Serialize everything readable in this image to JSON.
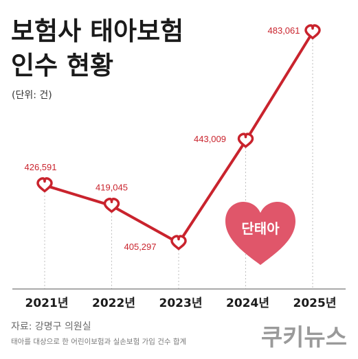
{
  "header": {
    "title_line1": "보험사 태아보험",
    "title_line2": "인수 현황",
    "unit": "(단위: 건)"
  },
  "badge": {
    "label": "단태아",
    "color": "#e0566a"
  },
  "footer": {
    "source": "자료: 강명구 의원실",
    "note": "태아를 대상으로 한 어린이보험과 실손보험 가입 건수 합계",
    "logo": "쿠키뉴스"
  },
  "colors": {
    "line": "#c9232d",
    "grid": "#bdbdbd"
  },
  "chart_data": {
    "type": "line",
    "categories": [
      "2021년",
      "2022년",
      "2023년",
      "2024년",
      "2025년"
    ],
    "values": [
      426591,
      419045,
      405297,
      443009,
      483061
    ],
    "value_labels": [
      "426,591",
      "419,045",
      "405,297",
      "443,009",
      "483,061"
    ],
    "title": "보험사 태아보험 인수 현황",
    "ylabel": "",
    "xlabel": "",
    "grid": "vertical dashed",
    "marker": "heart-icon"
  }
}
